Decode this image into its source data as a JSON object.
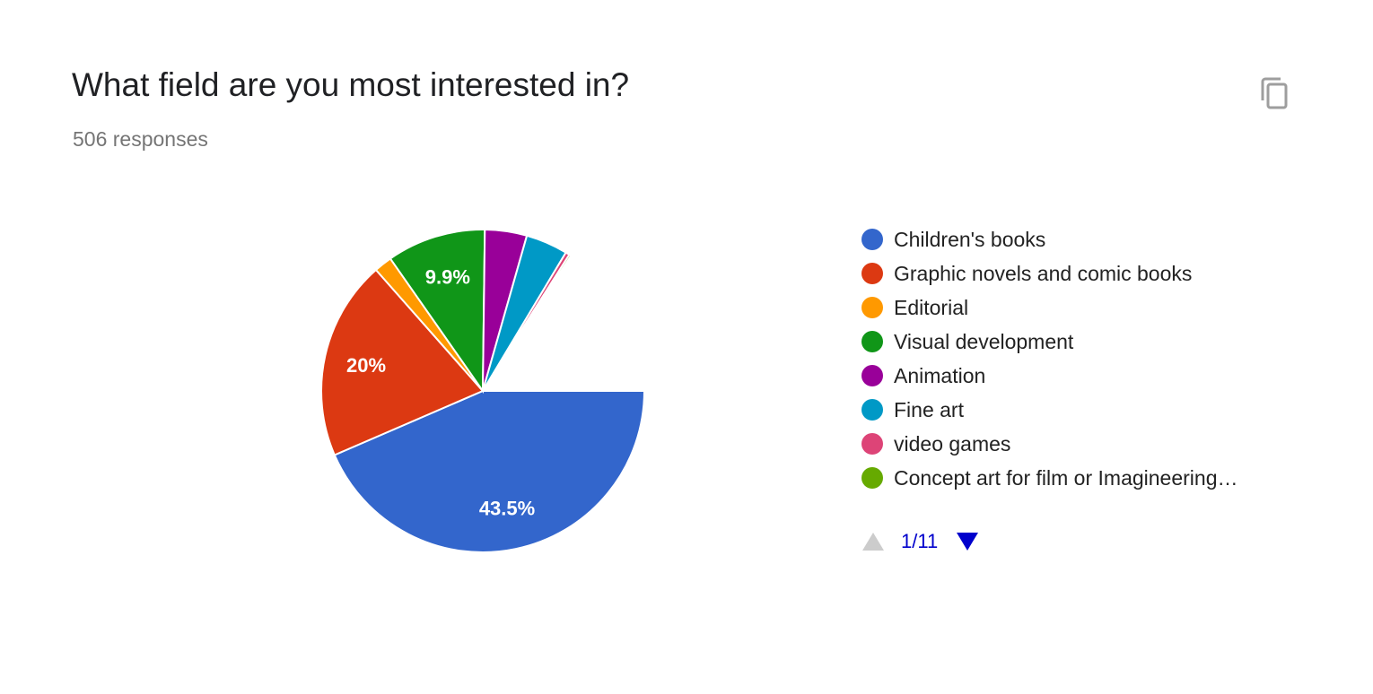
{
  "question": {
    "title": "What field are you most interested in?",
    "responses": "506 responses"
  },
  "icons": {
    "copy": "copy-icon",
    "prev": "triangle-up-icon",
    "next": "triangle-down-icon"
  },
  "chart_data": {
    "type": "pie",
    "total_responses": 506,
    "slices": [
      {
        "label": "Children's books",
        "value": 43.5,
        "color": "#3366cc",
        "data_label": "43.5%"
      },
      {
        "label": "Graphic novels and comic books",
        "value": 20.0,
        "color": "#dc3912",
        "data_label": "20%"
      },
      {
        "label": "Editorial",
        "value": 1.8,
        "color": "#ff9900",
        "data_label": ""
      },
      {
        "label": "Visual development",
        "value": 9.9,
        "color": "#109618",
        "data_label": "9.9%"
      },
      {
        "label": "Animation",
        "value": 4.2,
        "color": "#990099",
        "data_label": ""
      },
      {
        "label": "Fine art",
        "value": 4.2,
        "color": "#0099c6",
        "data_label": ""
      },
      {
        "label": "video games",
        "value": 0.4,
        "color": "#dd4477",
        "data_label": ""
      },
      {
        "label": "Concept art for film or Imagineering…",
        "value": 0.2,
        "color": "#66aa00",
        "data_label": ""
      },
      {
        "label": "",
        "value": 15.8,
        "color": "#ffffff",
        "data_label": ""
      }
    ],
    "legend_position": "right",
    "pagination": {
      "text": "1/11",
      "prev_color": "#cccccc",
      "next_color": "#0000cc"
    }
  }
}
